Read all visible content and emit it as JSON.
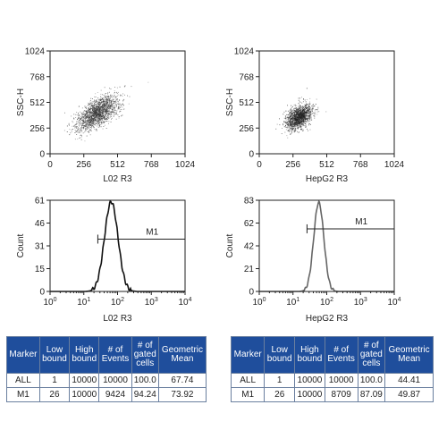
{
  "chart_data": [
    {
      "type": "scatter",
      "name": "l02-ssc-fsc",
      "xlabel": "L02 R3",
      "ylabel": "SSC-H",
      "xlim": [
        0,
        1024
      ],
      "ylim": [
        0,
        1024
      ],
      "xticks": [
        "0",
        "256",
        "512",
        "768",
        "1024"
      ],
      "yticks": [
        "0",
        "256",
        "512",
        "768",
        "1024"
      ],
      "cluster": {
        "center_x": 360,
        "center_y": 410,
        "spread_major": 230,
        "spread_minor": 110,
        "angle_deg": 48,
        "points": 1800
      },
      "color": "#333333"
    },
    {
      "type": "scatter",
      "name": "hepg2-ssc-fsc",
      "xlabel": "HepG2 R3",
      "ylabel": "SSC-H",
      "xlim": [
        0,
        1024
      ],
      "ylim": [
        0,
        1024
      ],
      "xticks": [
        "0",
        "256",
        "512",
        "768",
        "1024"
      ],
      "yticks": [
        "0",
        "256",
        "512",
        "768",
        "1024"
      ],
      "cluster": {
        "center_x": 300,
        "center_y": 370,
        "spread_major": 150,
        "spread_minor": 90,
        "angle_deg": 60,
        "points": 1500
      },
      "color": "#222222"
    },
    {
      "type": "line",
      "name": "l02-histogram",
      "xlabel": "L02 R3",
      "ylabel": "Count",
      "xscale": "log",
      "xlim": [
        1,
        10000
      ],
      "ylim": [
        0,
        61
      ],
      "yticks": [
        "0",
        "15",
        "31",
        "46",
        "61"
      ],
      "xtick_exponents": [
        "0",
        "1",
        "2",
        "3",
        "4"
      ],
      "peak": {
        "x": 65,
        "y": 60,
        "log_sigma": 0.2
      },
      "marker": {
        "label": "M1",
        "from": 26,
        "to": 10000,
        "y": 35
      },
      "color": "#111111"
    },
    {
      "type": "line",
      "name": "hepg2-histogram",
      "xlabel": "HepG2 R3",
      "ylabel": "Count",
      "xscale": "log",
      "xlim": [
        1,
        10000
      ],
      "ylim": [
        0,
        83
      ],
      "yticks": [
        "0",
        "21",
        "42",
        "62",
        "83"
      ],
      "xtick_exponents": [
        "0",
        "1",
        "2",
        "3",
        "4"
      ],
      "peak": {
        "x": 58,
        "y": 81,
        "log_sigma": 0.15
      },
      "marker": {
        "label": "M1",
        "from": 26,
        "to": 10000,
        "y": 57
      },
      "color": "#666666"
    },
    {
      "type": "table",
      "name": "l02-stats",
      "columns": [
        "Marker",
        "Low bound",
        "High bound",
        "# of Events",
        "# of gated cells",
        "Geometric Mean"
      ],
      "rows": [
        [
          "ALL",
          "1",
          "10000",
          "10000",
          "100.0",
          "67.74"
        ],
        [
          "M1",
          "26",
          "10000",
          "9424",
          "94.24",
          "73.92"
        ]
      ]
    },
    {
      "type": "table",
      "name": "hepg2-stats",
      "columns": [
        "Marker",
        "Low bound",
        "High bound",
        "# of Events",
        "# of gated cells",
        "Geometric Mean"
      ],
      "rows": [
        [
          "ALL",
          "1",
          "10000",
          "10000",
          "100.0",
          "44.41"
        ],
        [
          "M1",
          "26",
          "10000",
          "8709",
          "87.09",
          "49.87"
        ]
      ]
    }
  ],
  "tables": {
    "left": {
      "headers": {
        "marker": [
          "Marker"
        ],
        "low": [
          "Low",
          "bound"
        ],
        "high": [
          "High",
          "bound"
        ],
        "events": [
          "# of",
          "Events"
        ],
        "gated": [
          "# of",
          "gated",
          "cells"
        ],
        "geo": [
          "Geometric",
          "Mean"
        ]
      },
      "row_all": {
        "marker": "ALL",
        "low": "1",
        "high": "10000",
        "events": "10000",
        "gated": "100.0",
        "geo": "67.74"
      },
      "row_m1": {
        "marker": "M1",
        "low": "26",
        "high": "10000",
        "events": "9424",
        "gated": "94.24",
        "geo": "73.92"
      }
    },
    "right": {
      "headers": {
        "marker": [
          "Marker"
        ],
        "low": [
          "Low",
          "bound"
        ],
        "high": [
          "High",
          "bound"
        ],
        "events": [
          "# of",
          "Events"
        ],
        "gated": [
          "# of",
          "gated",
          "cells"
        ],
        "geo": [
          "Geometric",
          "Mean"
        ]
      },
      "row_all": {
        "marker": "ALL",
        "low": "1",
        "high": "10000",
        "events": "10000",
        "gated": "100.0",
        "geo": "44.41"
      },
      "row_m1": {
        "marker": "M1",
        "low": "26",
        "high": "10000",
        "events": "8709",
        "gated": "87.09",
        "geo": "49.87"
      }
    }
  },
  "colors": {
    "header_bg": "#1f4e9c",
    "header_text": "#ffffff",
    "axis": "#222222"
  }
}
